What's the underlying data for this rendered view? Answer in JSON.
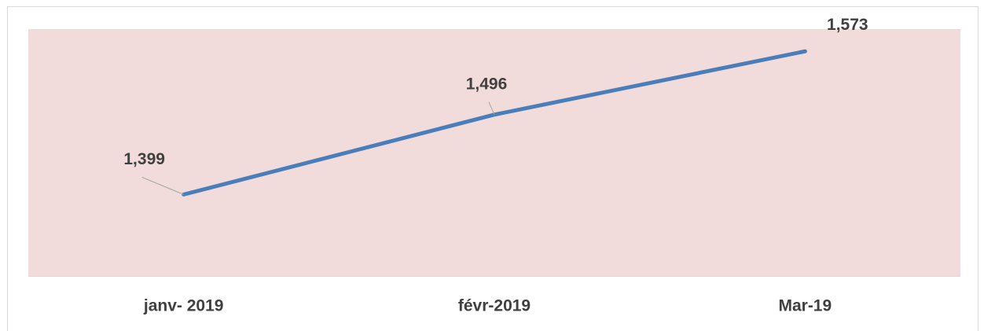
{
  "chart_data": {
    "type": "line",
    "categories": [
      "janv- 2019",
      "févr-2019",
      "Mar-19"
    ],
    "values": [
      1399,
      1496,
      1573
    ],
    "value_labels": [
      "1,399",
      "1,496",
      "1,573"
    ],
    "color": "#4a7ebb",
    "ylim": [
      1300,
      1600
    ]
  }
}
